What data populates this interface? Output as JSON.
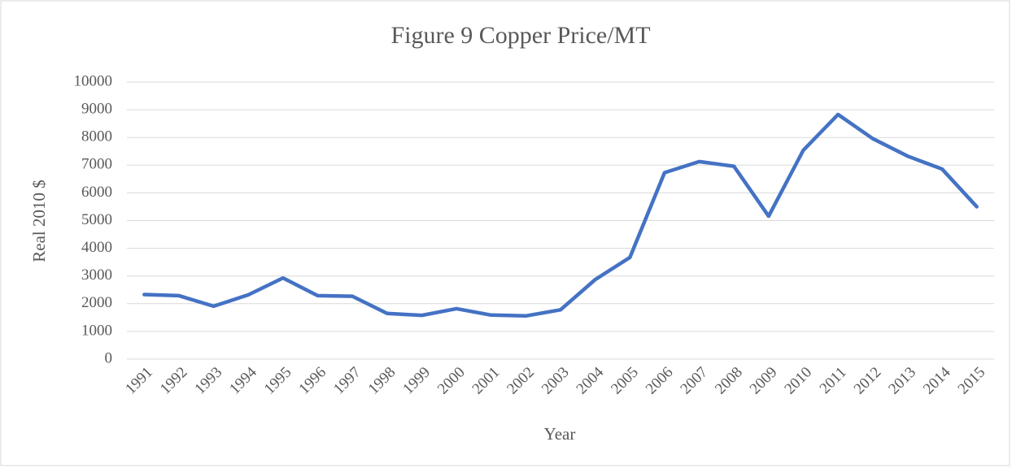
{
  "chart_data": {
    "type": "line",
    "title": "Figure 9 Copper Price/MT",
    "x_label": "Year",
    "y_label": "Real 2010 $",
    "categories": [
      "1991",
      "1992",
      "1993",
      "1994",
      "1995",
      "1996",
      "1997",
      "1998",
      "1999",
      "2000",
      "2001",
      "2002",
      "2003",
      "2004",
      "2005",
      "2006",
      "2007",
      "2008",
      "2009",
      "2010",
      "2011",
      "2012",
      "2013",
      "2014",
      "2015"
    ],
    "series": [
      {
        "name": "Copper Price",
        "color": "#4472c4",
        "values": [
          2330,
          2290,
          1910,
          2320,
          2930,
          2290,
          2270,
          1650,
          1580,
          1820,
          1590,
          1560,
          1780,
          2870,
          3670,
          6730,
          7130,
          6960,
          5160,
          7540,
          8830,
          7960,
          7330,
          6860,
          5500
        ]
      }
    ],
    "ylim": [
      0,
      10000
    ],
    "yticks": [
      0,
      1000,
      2000,
      3000,
      4000,
      5000,
      6000,
      7000,
      8000,
      9000,
      10000
    ],
    "grid": true
  }
}
